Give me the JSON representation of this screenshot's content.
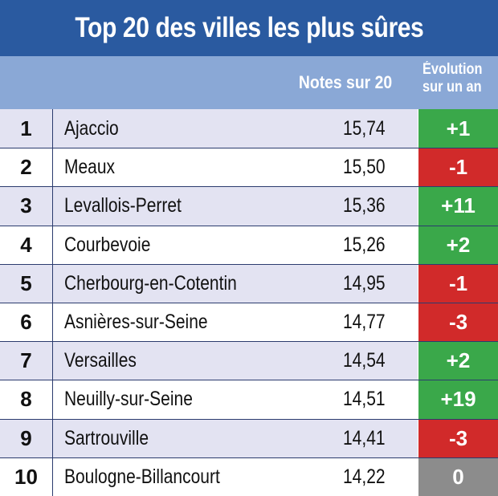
{
  "title": "Top 20 des villes les plus sûres",
  "header": {
    "score_label": "Notes sur 20",
    "evolution_line1": "Évolution",
    "evolution_line2": "sur un an"
  },
  "colors": {
    "title_bg": "#2a5aa0",
    "header_bg": "#8aa8d6",
    "row_alt_bg": "#e3e3f2",
    "up": "#3aa84a",
    "down": "#d12a2a",
    "neutral": "#8c8c8c"
  },
  "rows": [
    {
      "rank": "1",
      "city": "Ajaccio",
      "score": "15,74",
      "evolution": "+1",
      "trend": "up"
    },
    {
      "rank": "2",
      "city": "Meaux",
      "score": "15,50",
      "evolution": "-1",
      "trend": "down"
    },
    {
      "rank": "3",
      "city": "Levallois-Perret",
      "score": "15,36",
      "evolution": "+11",
      "trend": "up"
    },
    {
      "rank": "4",
      "city": "Courbevoie",
      "score": "15,26",
      "evolution": "+2",
      "trend": "up"
    },
    {
      "rank": "5",
      "city": "Cherbourg-en-Cotentin",
      "score": "14,95",
      "evolution": "-1",
      "trend": "down"
    },
    {
      "rank": "6",
      "city": "Asnières-sur-Seine",
      "score": "14,77",
      "evolution": "-3",
      "trend": "down"
    },
    {
      "rank": "7",
      "city": "Versailles",
      "score": "14,54",
      "evolution": "+2",
      "trend": "up"
    },
    {
      "rank": "8",
      "city": "Neuilly-sur-Seine",
      "score": "14,51",
      "evolution": "+19",
      "trend": "up"
    },
    {
      "rank": "9",
      "city": "Sartrouville",
      "score": "14,41",
      "evolution": "-3",
      "trend": "down"
    },
    {
      "rank": "10",
      "city": "Boulogne-Billancourt",
      "score": "14,22",
      "evolution": "0",
      "trend": "flat"
    }
  ]
}
